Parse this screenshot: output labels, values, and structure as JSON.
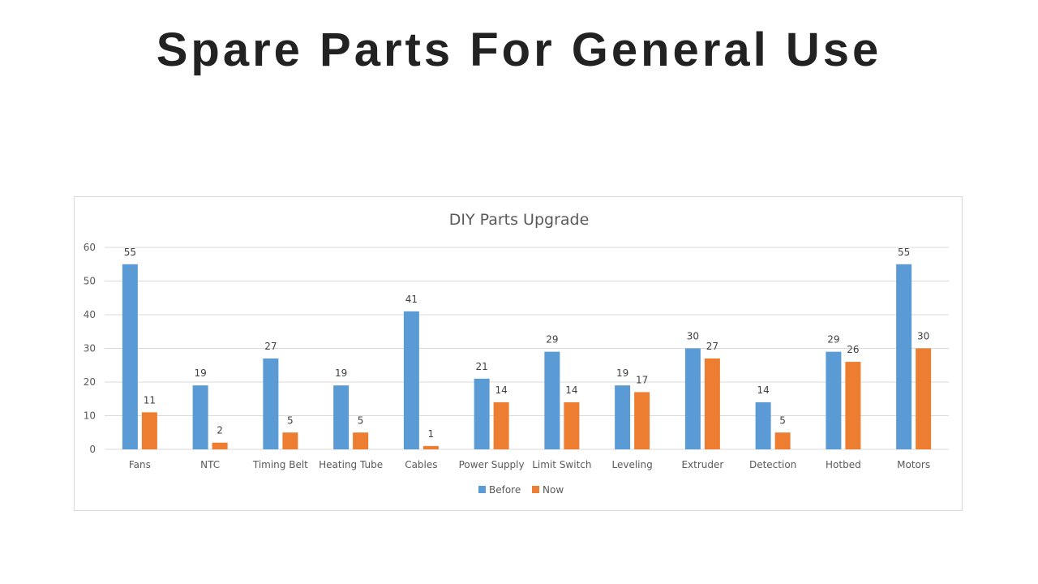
{
  "slide": {
    "title": "Spare Parts For General Use"
  },
  "colors": {
    "before": "#5b9bd5",
    "now": "#ed7d31",
    "grid": "#d9d9d9",
    "text": "#595959"
  },
  "chart_data": {
    "type": "bar",
    "title": "DIY Parts Upgrade",
    "xlabel": "",
    "ylabel": "",
    "ylim": [
      0,
      60
    ],
    "yticks": [
      0,
      10,
      20,
      30,
      40,
      50,
      60
    ],
    "grid": true,
    "legend_position": "bottom",
    "categories": [
      "Fans",
      "NTC",
      "Timing Belt",
      "Heating Tube",
      "Cables",
      "Power Supply",
      "Limit Switch",
      "Leveling",
      "Extruder",
      "Detection",
      "Hotbed",
      "Motors"
    ],
    "series": [
      {
        "name": "Before",
        "values": [
          55,
          19,
          27,
          19,
          41,
          21,
          29,
          19,
          30,
          14,
          29,
          55
        ]
      },
      {
        "name": "Now",
        "values": [
          11,
          2,
          5,
          5,
          1,
          14,
          14,
          17,
          27,
          5,
          26,
          30
        ]
      }
    ]
  }
}
